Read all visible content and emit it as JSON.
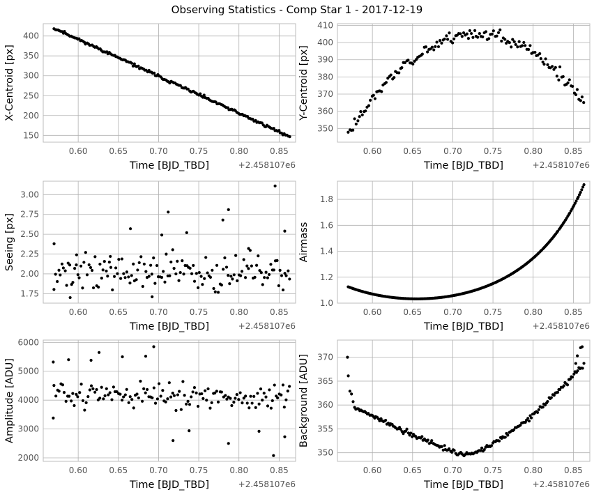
{
  "title": "Observing Statistics - Comp Star 1 - 2017-12-19",
  "styles": {
    "grid": "#b0b0b0",
    "frame": "#bcbcbc",
    "tick_label": "#555555",
    "label": "#000000",
    "marker": "#000000"
  },
  "chart_data": [
    {
      "id": "xcentroid",
      "type": "scatter",
      "xlabel": "Time [BJD_TBD]",
      "ylabel": "X-Centroid [px]",
      "offset_text": "+2.458107e6",
      "xlim": [
        0.5565,
        0.8705
      ],
      "ylim": [
        133,
        431
      ],
      "xticks": [
        0.6,
        0.65,
        0.7,
        0.75,
        0.8,
        0.85
      ],
      "xtick_labels": [
        "0.60",
        "0.65",
        "0.70",
        "0.75",
        "0.80",
        "0.85"
      ],
      "yticks": [
        150,
        200,
        250,
        300,
        350,
        400
      ],
      "ytick_labels": [
        "150",
        "200",
        "250",
        "300",
        "350",
        "400"
      ],
      "series_gen": {
        "kind": "linear",
        "x_start": 0.57,
        "x_end": 0.863,
        "n": 180,
        "y_start": 420,
        "y_end": 147,
        "noise": 2.5,
        "seed": 11
      }
    },
    {
      "id": "ycentroid",
      "type": "scatter",
      "xlabel": "Time [BJD_TBD]",
      "ylabel": "Y-Centroid [px]",
      "offset_text": "+2.458107e6",
      "xlim": [
        0.5565,
        0.8705
      ],
      "ylim": [
        342,
        411
      ],
      "xticks": [
        0.6,
        0.65,
        0.7,
        0.75,
        0.8,
        0.85
      ],
      "xtick_labels": [
        "0.60",
        "0.65",
        "0.70",
        "0.75",
        "0.80",
        "0.85"
      ],
      "yticks": [
        350,
        360,
        370,
        380,
        390,
        400,
        410
      ],
      "ytick_labels": [
        "350",
        "360",
        "370",
        "380",
        "390",
        "400",
        "410"
      ],
      "series_gen": {
        "kind": "parabola",
        "x_start": 0.57,
        "x_end": 0.863,
        "n": 150,
        "vertex_x": 0.73,
        "vertex_y": 405,
        "a": -2250,
        "noise": 2.5,
        "seed": 23
      }
    },
    {
      "id": "seeing",
      "type": "scatter",
      "xlabel": "Time [BJD_TBD]",
      "ylabel": "Seeing [px]",
      "offset_text": "+2.458107e6",
      "xlim": [
        0.5565,
        0.8705
      ],
      "ylim": [
        1.63,
        3.17
      ],
      "xticks": [
        0.6,
        0.65,
        0.7,
        0.75,
        0.8,
        0.85
      ],
      "xtick_labels": [
        "0.60",
        "0.65",
        "0.70",
        "0.75",
        "0.80",
        "0.85"
      ],
      "yticks": [
        1.75,
        2.0,
        2.25,
        2.5,
        2.75,
        3.0
      ],
      "ytick_labels": [
        "1.75",
        "2.00",
        "2.25",
        "2.50",
        "2.75",
        "3.00"
      ],
      "series_gen": {
        "kind": "random",
        "x_start": 0.57,
        "x_end": 0.863,
        "n": 150,
        "center": 2.02,
        "spread": 0.16,
        "seed": 37
      },
      "extra_points": [
        [
          0.845,
          3.11
        ],
        [
          0.787,
          2.81
        ],
        [
          0.712,
          2.78
        ],
        [
          0.78,
          2.68
        ],
        [
          0.665,
          2.57
        ],
        [
          0.857,
          2.54
        ],
        [
          0.735,
          2.52
        ],
        [
          0.704,
          2.49
        ],
        [
          0.57,
          2.38
        ],
        [
          0.598,
          2.24
        ],
        [
          0.64,
          2.22
        ],
        [
          0.812,
          2.32
        ],
        [
          0.59,
          1.7
        ],
        [
          0.692,
          1.71
        ]
      ]
    },
    {
      "id": "airmass",
      "type": "scatter",
      "xlabel": "Time [BJD_TBD]",
      "ylabel": "Airmass",
      "offset_text": "+2.458107e6",
      "xlim": [
        0.5565,
        0.8705
      ],
      "ylim": [
        1.0,
        1.94
      ],
      "xticks": [
        0.6,
        0.65,
        0.7,
        0.75,
        0.8,
        0.85
      ],
      "xtick_labels": [
        "0.60",
        "0.65",
        "0.70",
        "0.75",
        "0.80",
        "0.85"
      ],
      "yticks": [
        1.0,
        1.2,
        1.4,
        1.6,
        1.8
      ],
      "ytick_labels": [
        "1.0",
        "1.2",
        "1.4",
        "1.6",
        "1.8"
      ],
      "series_gen": {
        "kind": "airmass",
        "x_start": 0.57,
        "x_end": 0.863,
        "n": 220,
        "transit_x": 0.655,
        "min_airmass": 1.033,
        "end_airmass": 1.91,
        "noise": 0.0,
        "seed": 5
      }
    },
    {
      "id": "amplitude",
      "type": "scatter",
      "xlabel": "Time [BJD_TBD]",
      "ylabel": "Amplitude [ADU]",
      "offset_text": "+2.458107e6",
      "xlim": [
        0.5565,
        0.8705
      ],
      "ylim": [
        1880,
        6080
      ],
      "xticks": [
        0.6,
        0.65,
        0.7,
        0.75,
        0.8,
        0.85
      ],
      "xtick_labels": [
        "0.60",
        "0.65",
        "0.70",
        "0.75",
        "0.80",
        "0.85"
      ],
      "yticks": [
        2000,
        3000,
        4000,
        5000,
        6000
      ],
      "ytick_labels": [
        "2000",
        "3000",
        "4000",
        "5000",
        "6000"
      ],
      "series_gen": {
        "kind": "random",
        "x_start": 0.57,
        "x_end": 0.863,
        "n": 140,
        "center": 4150,
        "spread": 330,
        "slope": -900,
        "seed": 51
      },
      "extra_points": [
        [
          0.694,
          5850
        ],
        [
          0.626,
          5650
        ],
        [
          0.588,
          5400
        ],
        [
          0.569,
          5320
        ],
        [
          0.655,
          5500
        ],
        [
          0.684,
          5520
        ],
        [
          0.616,
          5380
        ],
        [
          0.569,
          3380
        ],
        [
          0.718,
          2600
        ],
        [
          0.787,
          2500
        ],
        [
          0.843,
          2080
        ],
        [
          0.857,
          2730
        ],
        [
          0.738,
          2940
        ],
        [
          0.825,
          2920
        ]
      ]
    },
    {
      "id": "background",
      "type": "scatter",
      "xlabel": "Time [BJD_TBD]",
      "ylabel": "Background [ADU]",
      "offset_text": "+2.458107e6",
      "xlim": [
        0.5565,
        0.8705
      ],
      "ylim": [
        348.2,
        373.6
      ],
      "xticks": [
        0.6,
        0.65,
        0.7,
        0.75,
        0.8,
        0.85
      ],
      "xtick_labels": [
        "0.60",
        "0.65",
        "0.70",
        "0.75",
        "0.80",
        "0.85"
      ],
      "yticks": [
        350,
        355,
        360,
        365,
        370
      ],
      "ytick_labels": [
        "350",
        "355",
        "360",
        "365",
        "370"
      ],
      "series_gen": {
        "kind": "bowl",
        "x_start": 0.578,
        "x_end": 0.863,
        "n": 185,
        "noise": 0.35,
        "seed": 77
      },
      "extra_points": [
        [
          0.569,
          370.0
        ],
        [
          0.57,
          366.1
        ],
        [
          0.572,
          362.9
        ],
        [
          0.574,
          362.3
        ],
        [
          0.576,
          360.7
        ],
        [
          0.861,
          372.2
        ],
        [
          0.859,
          372.0
        ],
        [
          0.855,
          370.3
        ],
        [
          0.853,
          368.7
        ]
      ]
    }
  ]
}
